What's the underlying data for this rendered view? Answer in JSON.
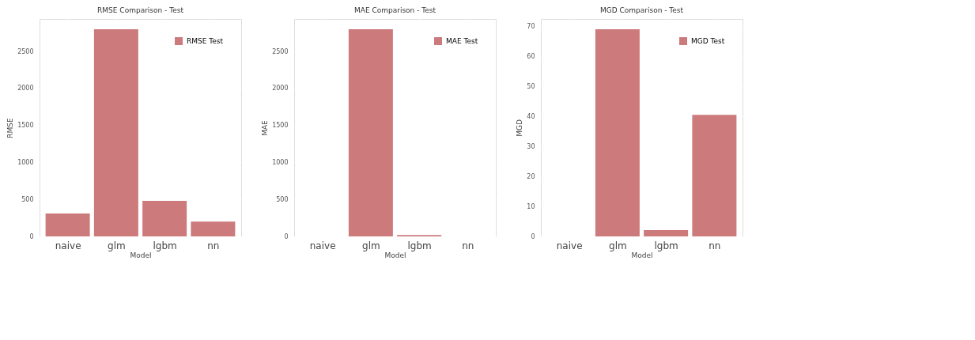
{
  "chart_data": [
    {
      "type": "bar",
      "title": "RMSE Comparison - Test",
      "xlabel": "Model",
      "ylabel": "RMSE",
      "categories": [
        "naive",
        "glm",
        "lgbm",
        "nn"
      ],
      "series": [
        {
          "name": "RMSE Test",
          "color": "#cd7a7d",
          "values": [
            310,
            2800,
            480,
            200
          ]
        }
      ],
      "ylim": [
        0,
        2940
      ],
      "yticks": [
        0,
        500,
        1000,
        1500,
        2000,
        2500
      ],
      "grid": true,
      "legend": "top right"
    },
    {
      "type": "bar",
      "title": "MAE Comparison - Test",
      "xlabel": "Model",
      "ylabel": "MAE",
      "categories": [
        "naive",
        "glm",
        "lgbm",
        "nn"
      ],
      "series": [
        {
          "name": "MAE Test",
          "color": "#cd7a7d",
          "values": [
            0,
            2800,
            20,
            0
          ]
        }
      ],
      "ylim": [
        0,
        2940
      ],
      "yticks": [
        0,
        500,
        1000,
        1500,
        2000,
        2500
      ],
      "grid": true,
      "legend": "top right"
    },
    {
      "type": "bar",
      "title": "MGD Comparison - Test",
      "xlabel": "Model",
      "ylabel": "MGD",
      "categories": [
        "naive",
        "glm",
        "lgbm",
        "nn"
      ],
      "series": [
        {
          "name": "MGD Test",
          "color": "#cd7a7d",
          "values": [
            0,
            69,
            2.1,
            40.5
          ]
        }
      ],
      "ylim": [
        0,
        72.4
      ],
      "yticks": [
        0,
        10,
        20,
        30,
        40,
        50,
        60,
        70
      ],
      "grid": true,
      "legend": "top right"
    }
  ]
}
